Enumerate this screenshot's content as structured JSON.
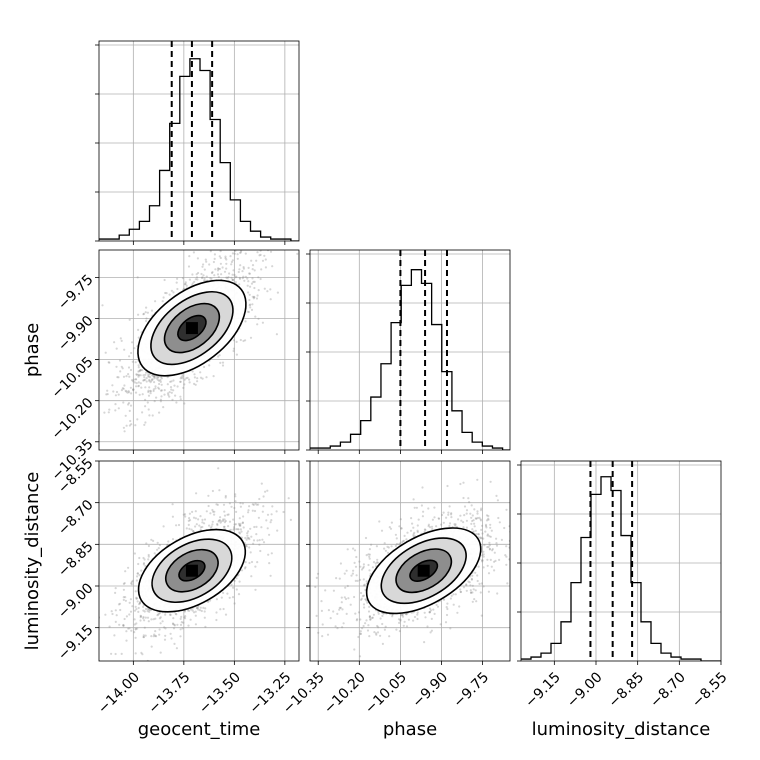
{
  "chart_data": {
    "type": "corner",
    "parameters": [
      "geocent_time",
      "phase",
      "luminosity_distance"
    ],
    "axis_labels": {
      "geocent_time": "geocent_time",
      "phase": "phase",
      "luminosity_distance": "luminosity_distance"
    },
    "ranges": {
      "geocent_time": [
        -14.17,
        -13.18
      ],
      "phase": [
        -10.38,
        -9.65
      ],
      "luminosity_distance": [
        -9.27,
        -8.55
      ]
    },
    "ticks": {
      "geocent_time": [
        -14.0,
        -13.75,
        -13.5,
        -13.25
      ],
      "phase": [
        -10.35,
        -10.2,
        -10.05,
        -9.9,
        -9.75
      ],
      "luminosity_distance": [
        -9.15,
        -9.0,
        -8.85,
        -8.7,
        -8.55
      ]
    },
    "tick_labels": {
      "geocent_time": [
        "−14.00",
        "−13.75",
        "−13.50",
        "−13.25"
      ],
      "phase": [
        "−10.35",
        "−10.20",
        "−10.05",
        "−9.90",
        "−9.75"
      ],
      "luminosity_distance": [
        "−9.15",
        "−9.00",
        "−8.85",
        "−8.70",
        "−8.55"
      ]
    },
    "quantiles": {
      "geocent_time": [
        -13.81,
        -13.71,
        -13.61
      ],
      "phase": [
        -10.05,
        -9.96,
        -9.88
      ],
      "luminosity_distance": [
        -9.02,
        -8.94,
        -8.87
      ]
    },
    "histograms": {
      "geocent_time": {
        "edges_start": -14.17,
        "bin_width": 0.05,
        "counts": [
          0.01,
          0.01,
          0.03,
          0.06,
          0.1,
          0.18,
          0.36,
          0.6,
          0.84,
          0.93,
          0.87,
          0.62,
          0.4,
          0.21,
          0.1,
          0.05,
          0.02,
          0.01,
          0.01,
          0.0
        ]
      },
      "phase": {
        "edges_start": -10.38,
        "bin_width": 0.037,
        "counts": [
          0.01,
          0.01,
          0.02,
          0.04,
          0.08,
          0.15,
          0.27,
          0.44,
          0.65,
          0.84,
          0.92,
          0.85,
          0.64,
          0.4,
          0.2,
          0.09,
          0.04,
          0.02,
          0.01,
          0.0
        ]
      },
      "luminosity_distance": {
        "edges_start": -9.27,
        "bin_width": 0.036,
        "counts": [
          0.01,
          0.02,
          0.04,
          0.09,
          0.2,
          0.4,
          0.63,
          0.85,
          0.94,
          0.87,
          0.64,
          0.4,
          0.2,
          0.09,
          0.04,
          0.02,
          0.01,
          0.01,
          0.0,
          0.0
        ]
      }
    },
    "pairs": [
      {
        "x": "geocent_time",
        "y": "phase",
        "center": [
          -13.71,
          -9.935
        ],
        "contours": [
          {
            "rx": 0.08,
            "ry": 0.035,
            "rot": -38
          },
          {
            "rx": 0.155,
            "ry": 0.07,
            "rot": -38
          },
          {
            "rx": 0.235,
            "ry": 0.1,
            "rot": -38
          },
          {
            "rx": 0.31,
            "ry": 0.13,
            "rot": -38
          }
        ]
      },
      {
        "x": "geocent_time",
        "y": "luminosity_distance",
        "center": [
          -13.71,
          -8.945
        ],
        "contours": [
          {
            "rx": 0.07,
            "ry": 0.03,
            "rot": -30
          },
          {
            "rx": 0.14,
            "ry": 0.065,
            "rot": -30
          },
          {
            "rx": 0.215,
            "ry": 0.095,
            "rot": -30
          },
          {
            "rx": 0.29,
            "ry": 0.12,
            "rot": -30
          }
        ]
      },
      {
        "x": "phase",
        "y": "luminosity_distance",
        "center": [
          -9.965,
          -8.945
        ],
        "contours": [
          {
            "rx": 0.055,
            "ry": 0.03,
            "rot": -30
          },
          {
            "rx": 0.11,
            "ry": 0.065,
            "rot": -30
          },
          {
            "rx": 0.17,
            "ry": 0.095,
            "rot": -30
          },
          {
            "rx": 0.23,
            "ry": 0.12,
            "rot": -30
          }
        ]
      }
    ],
    "grid": true
  }
}
